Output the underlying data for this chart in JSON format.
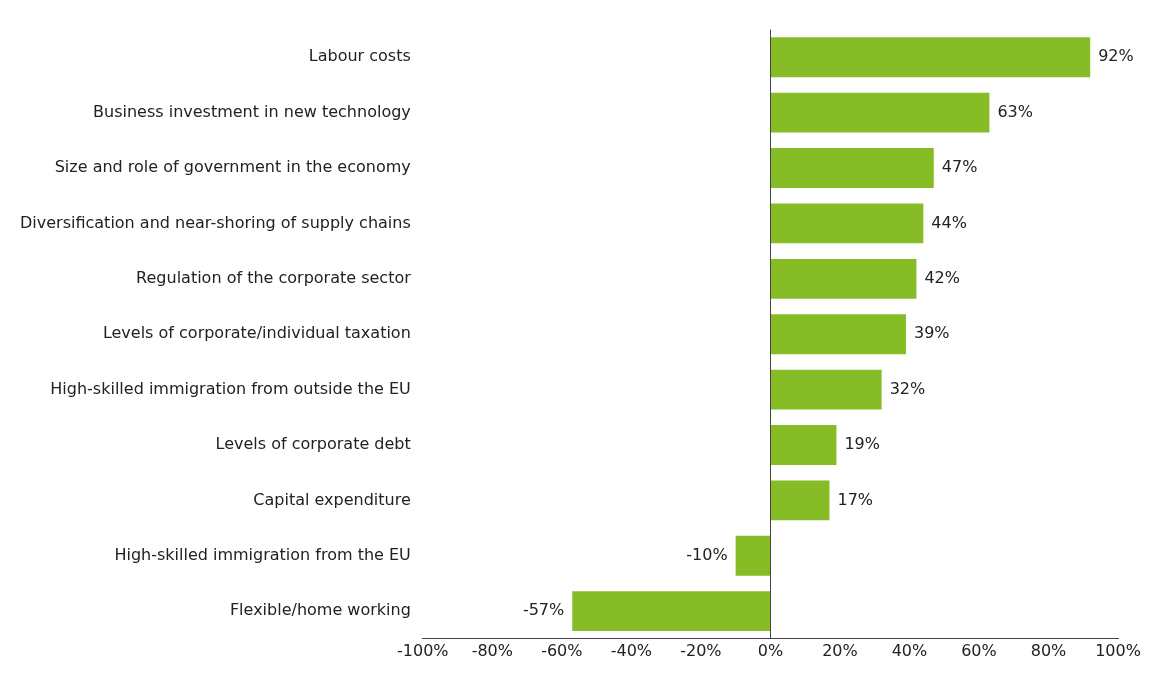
{
  "chart_data": {
    "type": "bar",
    "orientation": "horizontal",
    "categories": [
      "Labour costs",
      "Business investment in new technology",
      "Size and role of government in the economy",
      "Diversification and near-shoring of supply chains",
      "Regulation of the corporate sector",
      "Levels of corporate/individual taxation",
      "High-skilled immigration from outside the EU",
      "Levels of corporate debt",
      "Capital expenditure",
      "High-skilled immigration from the EU",
      "Flexible/home working"
    ],
    "values": [
      92,
      63,
      47,
      44,
      42,
      39,
      32,
      19,
      17,
      -10,
      -57
    ],
    "value_labels": [
      "92%",
      "63%",
      "47%",
      "44%",
      "42%",
      "39%",
      "32%",
      "19%",
      "17%",
      "-10%",
      "-57%"
    ],
    "color": "#86bc25",
    "xlim": [
      -100,
      100
    ],
    "xticks": [
      {
        "value": -100,
        "label": "-100%"
      },
      {
        "value": -80,
        "label": "-80%"
      },
      {
        "value": -60,
        "label": "-60%"
      },
      {
        "value": -40,
        "label": "-40%"
      },
      {
        "value": -20,
        "label": "-20%"
      },
      {
        "value": 0,
        "label": "0%"
      },
      {
        "value": 20,
        "label": "20%"
      },
      {
        "value": 40,
        "label": "40%"
      },
      {
        "value": 60,
        "label": "60%"
      },
      {
        "value": 80,
        "label": "80%"
      },
      {
        "value": 100,
        "label": "100%"
      }
    ],
    "legend": false
  }
}
